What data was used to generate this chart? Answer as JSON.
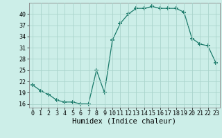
{
  "x": [
    0,
    1,
    2,
    3,
    4,
    5,
    6,
    7,
    8,
    9,
    10,
    11,
    12,
    13,
    14,
    15,
    16,
    17,
    18,
    19,
    20,
    21,
    22,
    23
  ],
  "y": [
    21,
    19.5,
    18.5,
    17,
    16.5,
    16.5,
    16,
    16,
    25,
    19,
    33,
    37.5,
    40,
    41.5,
    41.5,
    42,
    41.5,
    41.5,
    41.5,
    40.5,
    33.5,
    32,
    31.5,
    27
  ],
  "line_color": "#1a7a6a",
  "marker": "+",
  "marker_size": 4,
  "bg_color": "#cceee8",
  "grid_color": "#aad4cc",
  "xlabel": "Humidex (Indice chaleur)",
  "ylim": [
    15,
    43
  ],
  "xlim": [
    -0.5,
    23.5
  ],
  "yticks": [
    16,
    19,
    22,
    25,
    28,
    31,
    34,
    37,
    40
  ],
  "xticks": [
    0,
    1,
    2,
    3,
    4,
    5,
    6,
    7,
    8,
    9,
    10,
    11,
    12,
    13,
    14,
    15,
    16,
    17,
    18,
    19,
    20,
    21,
    22,
    23
  ],
  "tick_label_fontsize": 6,
  "xlabel_fontsize": 7.5
}
